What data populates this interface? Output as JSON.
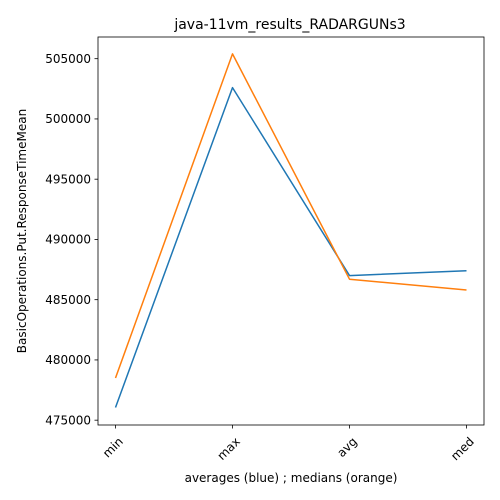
{
  "chart_data": {
    "type": "line",
    "title": "java-11vm_results_RADARGUNs3",
    "xlabel": "averages (blue) ; medians (orange)",
    "ylabel": "BasicOperations.Put.ResponseTimeMean",
    "categories": [
      "min",
      "max",
      "avg",
      "med"
    ],
    "series": [
      {
        "color": "#1f77b4",
        "values": [
          476050,
          502600,
          487000,
          487400
        ]
      },
      {
        "color": "#ff7f0e",
        "values": [
          478500,
          505400,
          486700,
          485800
        ]
      }
    ],
    "ylim": [
      474600,
      506800
    ],
    "yticks": [
      475000,
      480000,
      485000,
      490000,
      495000,
      500000,
      505000
    ],
    "ytick_labels": [
      "475000",
      "480000",
      "485000",
      "490000",
      "495000",
      "500000",
      "505000"
    ],
    "grid": false,
    "legend": "none"
  }
}
